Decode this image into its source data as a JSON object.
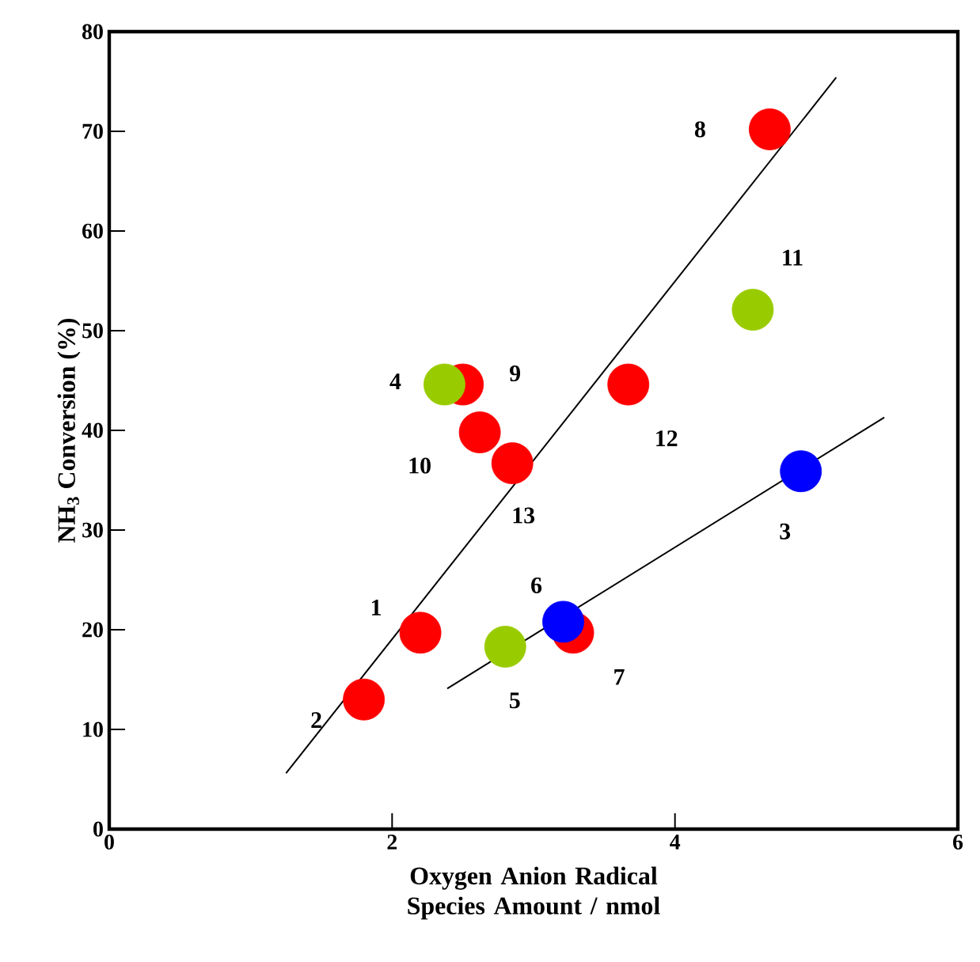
{
  "chart_data": {
    "type": "scatter",
    "xlabel": "Oxygen Anion Radical Species Amount / nmol",
    "ylabel": "NH$_{3}$ Conversion (%)",
    "marker": "circle",
    "xlim": [
      0,
      6
    ],
    "ylim": [
      0,
      80
    ],
    "xticks": [
      0,
      2,
      4,
      6
    ],
    "yticks": [
      0,
      10,
      20,
      30,
      40,
      50,
      60,
      70,
      80
    ],
    "series": [
      {
        "type": "line",
        "color": "#000000",
        "marker": "none",
        "x": [
          1.25,
          5.14
        ],
        "values": [
          5.6,
          75.4
        ]
      },
      {
        "type": "line",
        "color": "#000000",
        "marker": "none",
        "x": [
          2.39,
          5.48
        ],
        "values": [
          14.1,
          41.3
        ]
      },
      {
        "color": "#ff0000",
        "x": [
          2.2,
          1.8,
          3.28,
          4.67,
          2.5,
          2.62,
          3.67,
          2.85
        ],
        "values": [
          19.7,
          13.0,
          19.7,
          70.2,
          44.6,
          39.8,
          44.6,
          36.7
        ]
      },
      {
        "color": "#99cc00",
        "x": [
          2.37,
          2.8,
          4.55
        ],
        "values": [
          44.6,
          18.3,
          52.1
        ]
      },
      {
        "color": "#0000ff",
        "x": [
          4.89,
          3.21
        ],
        "values": [
          35.9,
          20.8
        ]
      }
    ],
    "annotations": [
      {
        "text": "1",
        "x": 2.2,
        "y": 19.7
      },
      {
        "text": "2",
        "x": 1.8,
        "y": 13.0
      },
      {
        "text": "3",
        "x": 4.89,
        "y": 35.9
      },
      {
        "text": "4",
        "x": 2.37,
        "y": 44.6
      },
      {
        "text": "5",
        "x": 2.8,
        "y": 18.3
      },
      {
        "text": "6",
        "x": 3.21,
        "y": 20.8
      },
      {
        "text": "7",
        "x": 3.28,
        "y": 19.7
      },
      {
        "text": "8",
        "x": 4.67,
        "y": 70.2
      },
      {
        "text": "9",
        "x": 2.5,
        "y": 44.6
      },
      {
        "text": "10",
        "x": 2.62,
        "y": 39.8
      },
      {
        "text": "11",
        "x": 4.55,
        "y": 52.1
      },
      {
        "text": "12",
        "x": 3.67,
        "y": 44.6
      },
      {
        "text": "13",
        "x": 2.85,
        "y": 36.7
      }
    ]
  }
}
